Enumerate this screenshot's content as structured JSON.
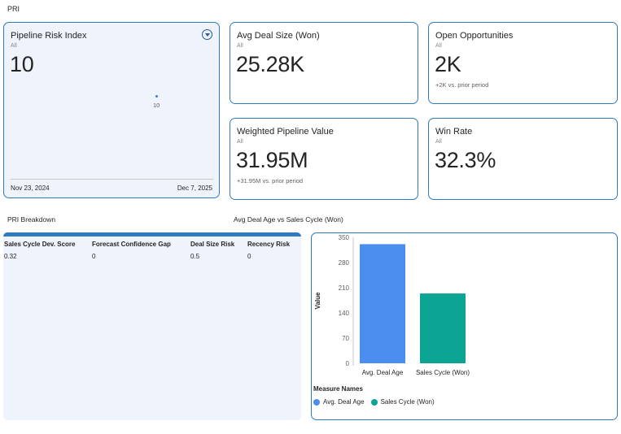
{
  "page": {
    "label": "PRI"
  },
  "pri_card": {
    "title": "Pipeline Risk Index",
    "filter": "All",
    "value": "10",
    "point_label": "10",
    "start_date": "Nov 23, 2024",
    "end_date": "Dec 7, 2025"
  },
  "avg_deal": {
    "title": "Avg Deal Size (Won)",
    "filter": "All",
    "value": "25.28K"
  },
  "open_opps": {
    "title": "Open Opportunities",
    "filter": "All",
    "value": "2K",
    "delta": "+2K vs. prior period"
  },
  "weighted": {
    "title": "Weighted Pipeline Value",
    "filter": "All",
    "value": "31.95M",
    "delta": "+31.95M vs. prior period"
  },
  "win_rate": {
    "title": "Win Rate",
    "filter": "All",
    "value": "32.3%"
  },
  "breakdown": {
    "title": "PRI Breakdown",
    "columns": [
      "Sales Cycle Dev. Score",
      "Forecast Confidence Gap",
      "Deal Size Risk",
      "Recency Risk"
    ],
    "row": [
      "0.32",
      "0",
      "0.5",
      "0"
    ]
  },
  "chart_title": "Avg Deal Age vs Sales Cycle (Won)",
  "chart_data": {
    "type": "bar",
    "categories": [
      "Avg. Deal Age",
      "Sales Cycle (Won)"
    ],
    "values": [
      331,
      194
    ],
    "ylabel": "Value",
    "xlabel": "",
    "ylim": [
      0,
      350
    ],
    "yticks": [
      "350",
      "280",
      "210",
      "140",
      "70",
      "0"
    ],
    "legend_title": "Measure Names",
    "legend": [
      "Avg. Deal Age",
      "Sales Cycle (Won)"
    ],
    "colors": [
      "#4b8ef0",
      "#0ca594"
    ]
  },
  "colors": {
    "card_border": "#2e7bbf",
    "tint": "#eef3fc"
  }
}
